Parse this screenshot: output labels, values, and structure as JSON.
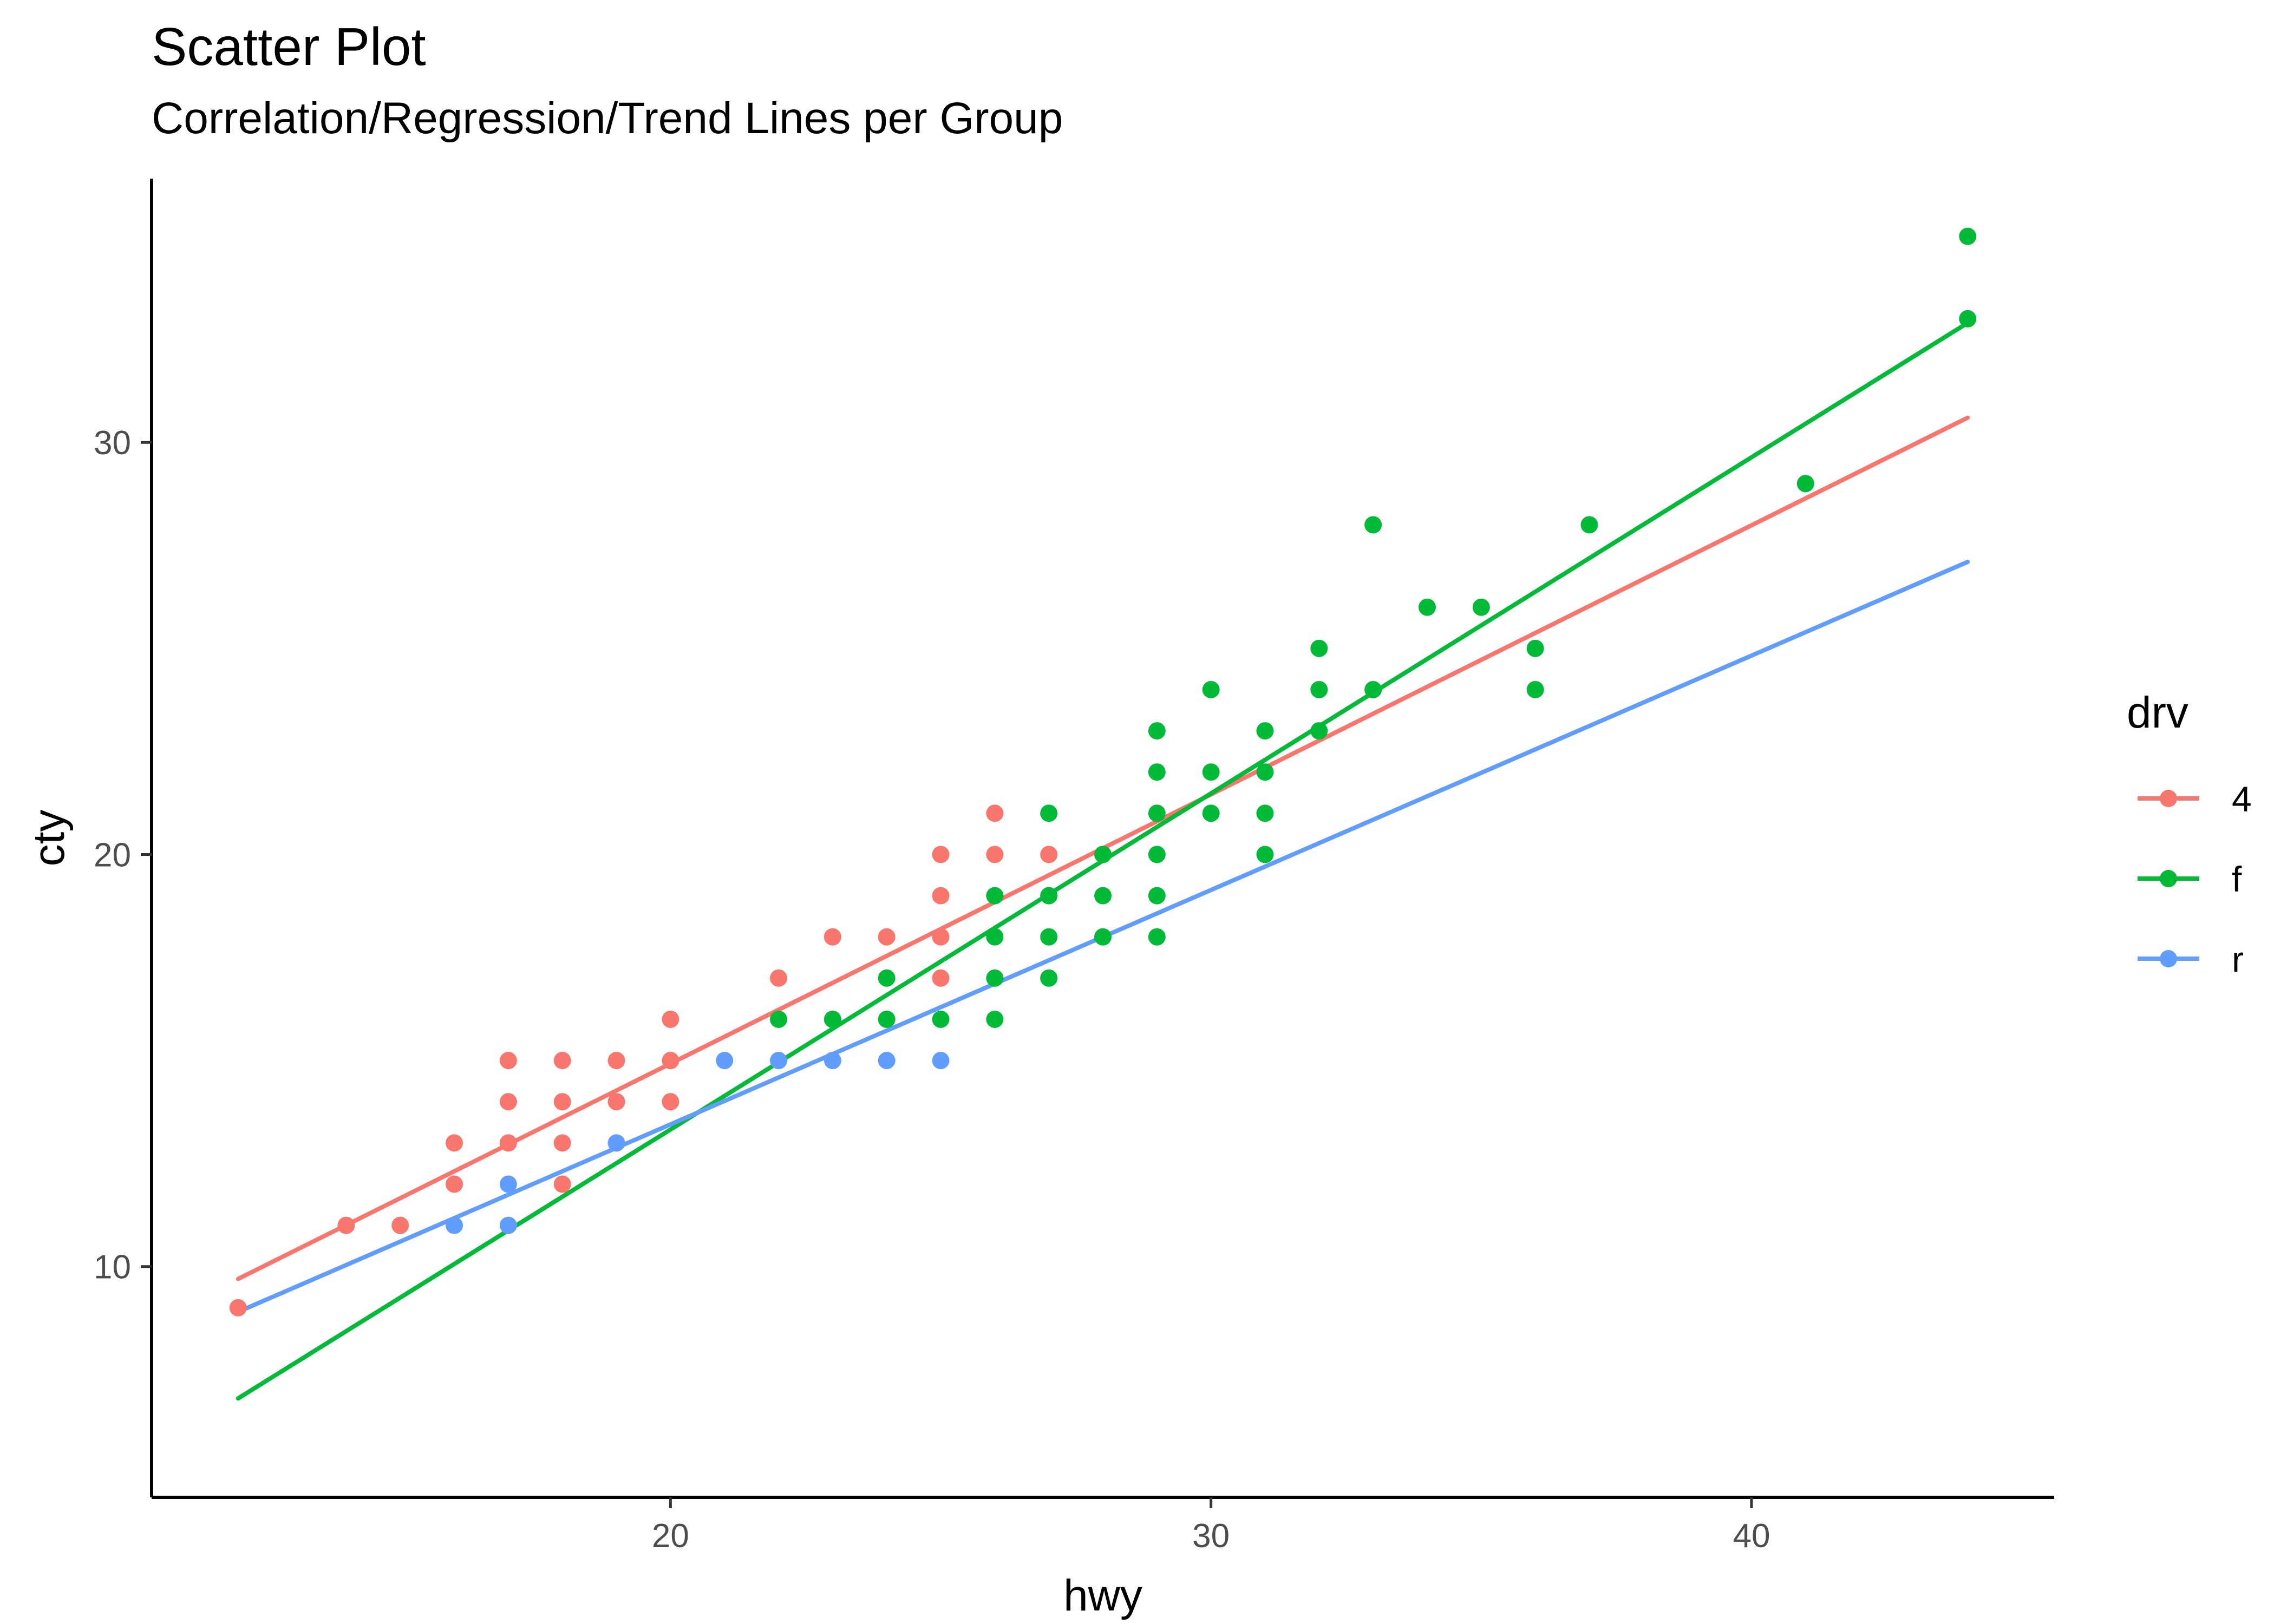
{
  "chart_data": {
    "type": "scatter",
    "title": "Scatter Plot",
    "subtitle": "Correlation/Regression/Trend Lines per Group",
    "xlabel": "hwy",
    "ylabel": "cty",
    "xlim": [
      10.4,
      45.6
    ],
    "ylim": [
      4.4,
      36.4
    ],
    "xticks": [
      20,
      30,
      40
    ],
    "yticks": [
      10,
      20,
      30
    ],
    "grid": false,
    "legend": {
      "title": "drv",
      "placement": "right"
    },
    "series": [
      {
        "name": "4",
        "color": "#F8766D",
        "points": [
          [
            12,
            9
          ],
          [
            14,
            11
          ],
          [
            15,
            11
          ],
          [
            16,
            12
          ],
          [
            16,
            13
          ],
          [
            17,
            13
          ],
          [
            17,
            14
          ],
          [
            17,
            15
          ],
          [
            18,
            12
          ],
          [
            18,
            13
          ],
          [
            18,
            14
          ],
          [
            18,
            15
          ],
          [
            19,
            13
          ],
          [
            19,
            14
          ],
          [
            19,
            15
          ],
          [
            20,
            14
          ],
          [
            20,
            15
          ],
          [
            20,
            16
          ],
          [
            22,
            17
          ],
          [
            23,
            18
          ],
          [
            24,
            18
          ],
          [
            25,
            17
          ],
          [
            25,
            18
          ],
          [
            25,
            19
          ],
          [
            25,
            20
          ],
          [
            26,
            20
          ],
          [
            26,
            21
          ],
          [
            27,
            20
          ],
          [
            28,
            20
          ]
        ],
        "trend": [
          [
            12,
            9.7
          ],
          [
            44,
            30.6
          ]
        ]
      },
      {
        "name": "f",
        "color": "#00BA38",
        "points": [
          [
            22,
            16
          ],
          [
            23,
            16
          ],
          [
            24,
            16
          ],
          [
            24,
            17
          ],
          [
            25,
            16
          ],
          [
            26,
            16
          ],
          [
            26,
            17
          ],
          [
            26,
            18
          ],
          [
            26,
            19
          ],
          [
            27,
            17
          ],
          [
            27,
            18
          ],
          [
            27,
            19
          ],
          [
            27,
            21
          ],
          [
            28,
            18
          ],
          [
            28,
            19
          ],
          [
            28,
            20
          ],
          [
            29,
            18
          ],
          [
            29,
            19
          ],
          [
            29,
            20
          ],
          [
            29,
            21
          ],
          [
            29,
            22
          ],
          [
            29,
            23
          ],
          [
            30,
            21
          ],
          [
            30,
            22
          ],
          [
            30,
            24
          ],
          [
            31,
            20
          ],
          [
            31,
            21
          ],
          [
            31,
            22
          ],
          [
            31,
            23
          ],
          [
            32,
            23
          ],
          [
            32,
            24
          ],
          [
            32,
            25
          ],
          [
            33,
            24
          ],
          [
            33,
            28
          ],
          [
            34,
            26
          ],
          [
            35,
            26
          ],
          [
            36,
            24
          ],
          [
            36,
            25
          ],
          [
            37,
            28
          ],
          [
            41,
            29
          ],
          [
            44,
            33
          ],
          [
            44,
            35
          ]
        ],
        "trend": [
          [
            12,
            6.8
          ],
          [
            44,
            32.9
          ]
        ]
      },
      {
        "name": "r",
        "color": "#619CFF",
        "points": [
          [
            16,
            11
          ],
          [
            17,
            11
          ],
          [
            17,
            12
          ],
          [
            19,
            13
          ],
          [
            21,
            15
          ],
          [
            22,
            15
          ],
          [
            23,
            15
          ],
          [
            24,
            15
          ],
          [
            25,
            15
          ]
        ],
        "trend": [
          [
            12,
            8.9
          ],
          [
            44,
            27.1
          ]
        ]
      }
    ]
  }
}
